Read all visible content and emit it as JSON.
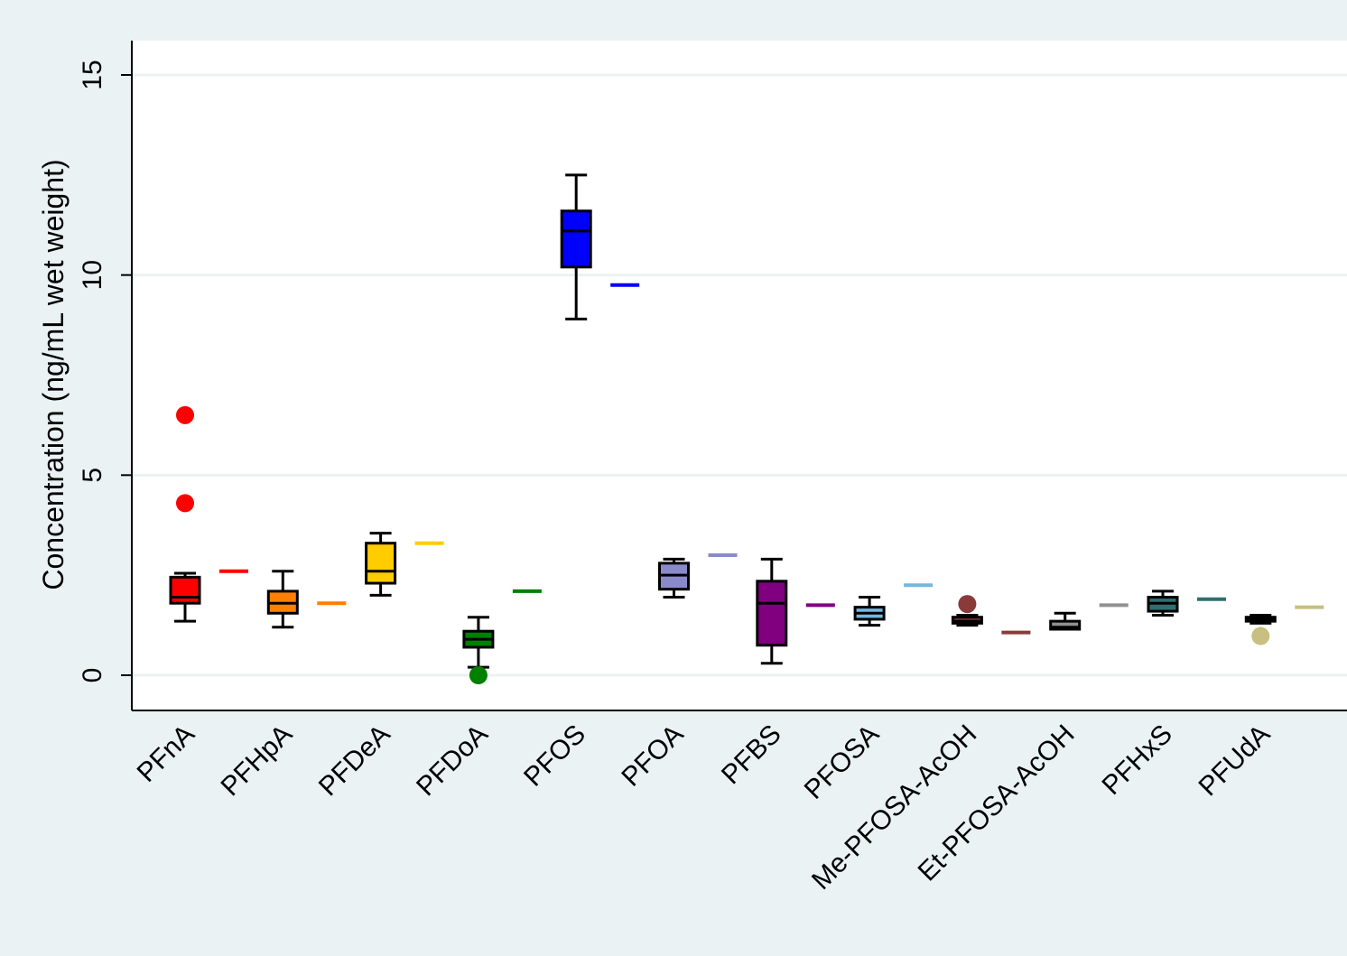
{
  "chart_data": {
    "type": "box",
    "title": "",
    "xlabel": "",
    "ylabel": "Concentration (ng/mL wet weight)",
    "ylim": [
      -0.9,
      15.9
    ],
    "yticks": [
      0,
      5,
      10,
      15
    ],
    "grid": true,
    "legend": "none",
    "categories": [
      "PFnA",
      "PFHpA",
      "PFDeA",
      "PFDoA",
      "PFOS",
      "PFOA",
      "PFBS",
      "PFOSA",
      "Me-PFOSA-AcOH",
      "Et-PFOSA-AcOH",
      "PFHxS",
      "PFUdA"
    ],
    "series": [
      {
        "color": "#ff0000",
        "min": 1.35,
        "q1": 1.8,
        "median": 1.95,
        "q3": 2.45,
        "max": 2.55,
        "outliers": [
          4.3,
          6.5
        ],
        "reference": 2.6
      },
      {
        "color": "#ff8000",
        "min": 1.2,
        "q1": 1.55,
        "median": 1.8,
        "q3": 2.1,
        "max": 2.6,
        "outliers": [],
        "reference": 1.8
      },
      {
        "color": "#ffcc00",
        "min": 2.0,
        "q1": 2.3,
        "median": 2.6,
        "q3": 3.3,
        "max": 3.55,
        "outliers": [],
        "reference": 3.3
      },
      {
        "color": "#008000",
        "min": 0.2,
        "q1": 0.7,
        "median": 0.9,
        "q3": 1.1,
        "max": 1.45,
        "outliers": [
          0.0
        ],
        "reference": 2.1
      },
      {
        "color": "#0000ff",
        "min": 8.9,
        "q1": 10.2,
        "median": 11.1,
        "q3": 11.6,
        "max": 12.5,
        "outliers": [],
        "reference": 9.75
      },
      {
        "color": "#8a8acb",
        "min": 1.95,
        "q1": 2.15,
        "median": 2.5,
        "q3": 2.8,
        "max": 2.9,
        "outliers": [],
        "reference": 3.0
      },
      {
        "color": "#800080",
        "min": 0.3,
        "q1": 0.75,
        "median": 1.8,
        "q3": 2.35,
        "max": 2.9,
        "outliers": [],
        "reference": 1.75
      },
      {
        "color": "#73b8e0",
        "min": 1.25,
        "q1": 1.4,
        "median": 1.55,
        "q3": 1.7,
        "max": 1.95,
        "outliers": [],
        "reference": 2.25
      },
      {
        "color": "#8b3a3a",
        "min": 1.25,
        "q1": 1.3,
        "median": 1.35,
        "q3": 1.45,
        "max": 1.5,
        "outliers": [
          1.78
        ],
        "reference": 1.07
      },
      {
        "color": "#909090",
        "min": 1.15,
        "q1": 1.15,
        "median": 1.2,
        "q3": 1.35,
        "max": 1.55,
        "outliers": [],
        "reference": 1.75
      },
      {
        "color": "#2f6f6f",
        "min": 1.5,
        "q1": 1.6,
        "median": 1.8,
        "q3": 1.95,
        "max": 2.1,
        "outliers": [],
        "reference": 1.9
      },
      {
        "color": "#c8bf80",
        "min": 1.3,
        "q1": 1.35,
        "median": 1.4,
        "q3": 1.45,
        "max": 1.5,
        "outliers": [
          0.98
        ],
        "reference": 1.7
      }
    ]
  }
}
